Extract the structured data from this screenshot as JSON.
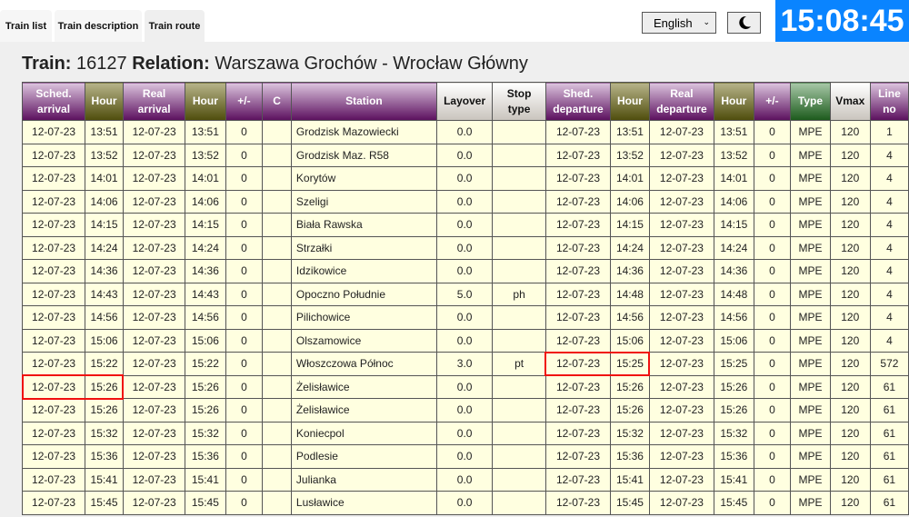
{
  "tabs": [
    {
      "label": "Train list"
    },
    {
      "label": "Train description"
    },
    {
      "label": "Train route",
      "active": true
    }
  ],
  "language": {
    "selected": "English"
  },
  "theme_toggle": {
    "icon": "moon-icon"
  },
  "clock": "15:08:45",
  "colors": {
    "clock_bg": "#0a84ff",
    "header_purple": "#5b0f5e",
    "header_olive": "#4f4d0c",
    "header_green": "#1b5a1b",
    "row_bg": "#ffffe0",
    "highlight": "#f01010"
  },
  "title": {
    "train_label": "Train:",
    "train_no": "16127",
    "relation_label": "Relation:",
    "relation": "Warszawa Grochów - Wrocław Główny"
  },
  "columns": [
    {
      "l1": "Sched.",
      "l2": "arrival",
      "c": "p"
    },
    {
      "l1": "Hour",
      "c": "o"
    },
    {
      "l1": "Real",
      "l2": "arrival",
      "c": "p"
    },
    {
      "l1": "Hour",
      "c": "o"
    },
    {
      "l1": "+/-",
      "c": "p"
    },
    {
      "l1": "C",
      "c": "p"
    },
    {
      "l1": "Station",
      "c": "p"
    },
    {
      "l1": "Layover",
      "c": "g"
    },
    {
      "l1": "Stop",
      "l2": "type",
      "c": "g"
    },
    {
      "l1": "Shed.",
      "l2": "departure",
      "c": "p"
    },
    {
      "l1": "Hour",
      "c": "o"
    },
    {
      "l1": "Real",
      "l2": "departure",
      "c": "p"
    },
    {
      "l1": "Hour",
      "c": "o"
    },
    {
      "l1": "+/-",
      "c": "p"
    },
    {
      "l1": "Type",
      "c": "t"
    },
    {
      "l1": "Vmax",
      "c": "g"
    },
    {
      "l1": "Line",
      "l2": "no",
      "c": "p"
    }
  ],
  "rows": [
    [
      "12-07-23",
      "13:51",
      "12-07-23",
      "13:51",
      "0",
      "",
      "Grodzisk Mazowiecki",
      "0.0",
      "",
      "12-07-23",
      "13:51",
      "12-07-23",
      "13:51",
      "0",
      "MPE",
      "120",
      "1"
    ],
    [
      "12-07-23",
      "13:52",
      "12-07-23",
      "13:52",
      "0",
      "",
      "Grodzisk Maz. R58",
      "0.0",
      "",
      "12-07-23",
      "13:52",
      "12-07-23",
      "13:52",
      "0",
      "MPE",
      "120",
      "4"
    ],
    [
      "12-07-23",
      "14:01",
      "12-07-23",
      "14:01",
      "0",
      "",
      "Korytów",
      "0.0",
      "",
      "12-07-23",
      "14:01",
      "12-07-23",
      "14:01",
      "0",
      "MPE",
      "120",
      "4"
    ],
    [
      "12-07-23",
      "14:06",
      "12-07-23",
      "14:06",
      "0",
      "",
      "Szeligi",
      "0.0",
      "",
      "12-07-23",
      "14:06",
      "12-07-23",
      "14:06",
      "0",
      "MPE",
      "120",
      "4"
    ],
    [
      "12-07-23",
      "14:15",
      "12-07-23",
      "14:15",
      "0",
      "",
      "Biała Rawska",
      "0.0",
      "",
      "12-07-23",
      "14:15",
      "12-07-23",
      "14:15",
      "0",
      "MPE",
      "120",
      "4"
    ],
    [
      "12-07-23",
      "14:24",
      "12-07-23",
      "14:24",
      "0",
      "",
      "Strzałki",
      "0.0",
      "",
      "12-07-23",
      "14:24",
      "12-07-23",
      "14:24",
      "0",
      "MPE",
      "120",
      "4"
    ],
    [
      "12-07-23",
      "14:36",
      "12-07-23",
      "14:36",
      "0",
      "",
      "Idzikowice",
      "0.0",
      "",
      "12-07-23",
      "14:36",
      "12-07-23",
      "14:36",
      "0",
      "MPE",
      "120",
      "4"
    ],
    [
      "12-07-23",
      "14:43",
      "12-07-23",
      "14:43",
      "0",
      "",
      "Opoczno Południe",
      "5.0",
      "ph",
      "12-07-23",
      "14:48",
      "12-07-23",
      "14:48",
      "0",
      "MPE",
      "120",
      "4"
    ],
    [
      "12-07-23",
      "14:56",
      "12-07-23",
      "14:56",
      "0",
      "",
      "Pilichowice",
      "0.0",
      "",
      "12-07-23",
      "14:56",
      "12-07-23",
      "14:56",
      "0",
      "MPE",
      "120",
      "4"
    ],
    [
      "12-07-23",
      "15:06",
      "12-07-23",
      "15:06",
      "0",
      "",
      "Olszamowice",
      "0.0",
      "",
      "12-07-23",
      "15:06",
      "12-07-23",
      "15:06",
      "0",
      "MPE",
      "120",
      "4"
    ],
    [
      "12-07-23",
      "15:22",
      "12-07-23",
      "15:22",
      "0",
      "",
      "Włoszczowa Północ",
      "3.0",
      "pt",
      "12-07-23",
      "15:25",
      "12-07-23",
      "15:25",
      "0",
      "MPE",
      "120",
      "572"
    ],
    [
      "12-07-23",
      "15:26",
      "12-07-23",
      "15:26",
      "0",
      "",
      "Żelisławice",
      "0.0",
      "",
      "12-07-23",
      "15:26",
      "12-07-23",
      "15:26",
      "0",
      "MPE",
      "120",
      "61"
    ],
    [
      "12-07-23",
      "15:26",
      "12-07-23",
      "15:26",
      "0",
      "",
      "Żelisławice",
      "0.0",
      "",
      "12-07-23",
      "15:26",
      "12-07-23",
      "15:26",
      "0",
      "MPE",
      "120",
      "61"
    ],
    [
      "12-07-23",
      "15:32",
      "12-07-23",
      "15:32",
      "0",
      "",
      "Koniecpol",
      "0.0",
      "",
      "12-07-23",
      "15:32",
      "12-07-23",
      "15:32",
      "0",
      "MPE",
      "120",
      "61"
    ],
    [
      "12-07-23",
      "15:36",
      "12-07-23",
      "15:36",
      "0",
      "",
      "Podlesie",
      "0.0",
      "",
      "12-07-23",
      "15:36",
      "12-07-23",
      "15:36",
      "0",
      "MPE",
      "120",
      "61"
    ],
    [
      "12-07-23",
      "15:41",
      "12-07-23",
      "15:41",
      "0",
      "",
      "Julianka",
      "0.0",
      "",
      "12-07-23",
      "15:41",
      "12-07-23",
      "15:41",
      "0",
      "MPE",
      "120",
      "61"
    ],
    [
      "12-07-23",
      "15:45",
      "12-07-23",
      "15:45",
      "0",
      "",
      "Lusławice",
      "0.0",
      "",
      "12-07-23",
      "15:45",
      "12-07-23",
      "15:45",
      "0",
      "MPE",
      "120",
      "61"
    ]
  ],
  "highlight": [
    {
      "row": 10,
      "group": "scheduled_departure"
    },
    {
      "row": 11,
      "group": "scheduled_arrival"
    }
  ]
}
